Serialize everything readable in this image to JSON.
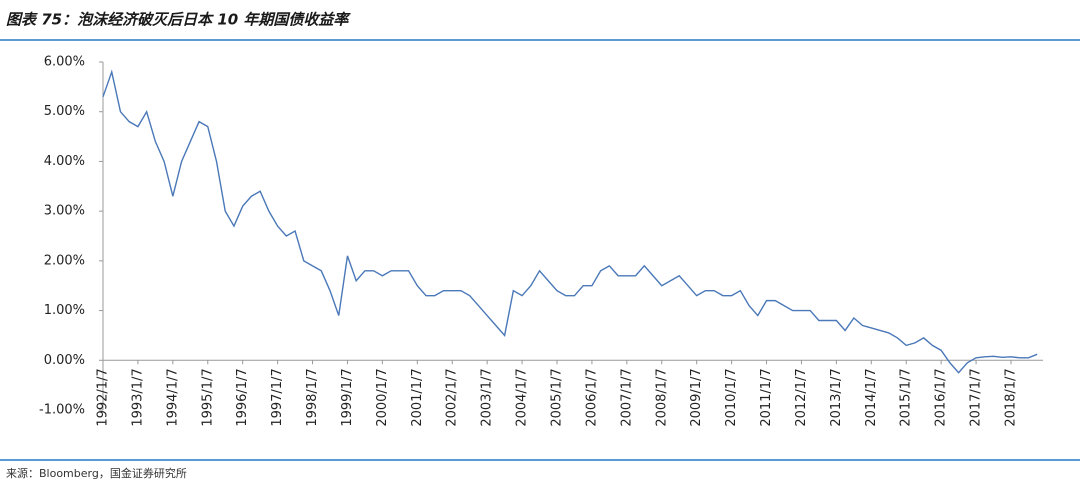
{
  "chart_data": {
    "type": "line",
    "title": "图表 75：泡沫经济破灭后日本 10 年期国债收益率",
    "source": "来源：Bloomberg，国金证券研究所",
    "x": [
      "1992/1/7",
      "1992/4/7",
      "1992/7/7",
      "1992/10/7",
      "1993/1/7",
      "1993/4/7",
      "1993/7/7",
      "1993/10/7",
      "1994/1/7",
      "1994/4/7",
      "1994/7/7",
      "1994/10/7",
      "1995/1/7",
      "1995/4/7",
      "1995/7/7",
      "1995/10/7",
      "1996/1/7",
      "1996/4/7",
      "1996/7/7",
      "1996/10/7",
      "1997/1/7",
      "1997/4/7",
      "1997/7/7",
      "1997/10/7",
      "1998/1/7",
      "1998/4/7",
      "1998/7/7",
      "1998/10/7",
      "1999/1/7",
      "1999/4/7",
      "1999/7/7",
      "1999/10/7",
      "2000/1/7",
      "2000/4/7",
      "2000/7/7",
      "2000/10/7",
      "2001/1/7",
      "2001/4/7",
      "2001/7/7",
      "2001/10/7",
      "2002/1/7",
      "2002/4/7",
      "2002/7/7",
      "2002/10/7",
      "2003/1/7",
      "2003/4/7",
      "2003/7/7",
      "2003/10/7",
      "2004/1/7",
      "2004/4/7",
      "2004/7/7",
      "2004/10/7",
      "2005/1/7",
      "2005/4/7",
      "2005/7/7",
      "2005/10/7",
      "2006/1/7",
      "2006/4/7",
      "2006/7/7",
      "2006/10/7",
      "2007/1/7",
      "2007/4/7",
      "2007/7/7",
      "2007/10/7",
      "2008/1/7",
      "2008/4/7",
      "2008/7/7",
      "2008/10/7",
      "2009/1/7",
      "2009/4/7",
      "2009/7/7",
      "2009/10/7",
      "2010/1/7",
      "2010/4/7",
      "2010/7/7",
      "2010/10/7",
      "2011/1/7",
      "2011/4/7",
      "2011/7/7",
      "2011/10/7",
      "2012/1/7",
      "2012/4/7",
      "2012/7/7",
      "2012/10/7",
      "2013/1/7",
      "2013/4/7",
      "2013/7/7",
      "2013/10/7",
      "2014/1/7",
      "2014/4/7",
      "2014/7/7",
      "2014/10/7",
      "2015/1/7",
      "2015/4/7",
      "2015/7/7",
      "2015/10/7",
      "2016/1/7",
      "2016/4/7",
      "2016/7/7",
      "2016/10/7",
      "2017/1/7",
      "2017/4/7",
      "2017/7/7",
      "2017/10/7",
      "2018/1/7",
      "2018/4/7",
      "2018/7/7",
      "2018/10/7"
    ],
    "series": [
      {
        "color": "#4a78b8",
        "values": [
          5.3,
          5.8,
          5.0,
          4.8,
          4.7,
          5.0,
          4.4,
          4.0,
          3.3,
          4.0,
          4.4,
          4.8,
          4.7,
          4.0,
          3.0,
          2.7,
          3.1,
          3.3,
          3.4,
          3.0,
          2.7,
          2.5,
          2.6,
          2.0,
          1.9,
          1.8,
          1.4,
          0.9,
          2.1,
          1.6,
          1.8,
          1.8,
          1.7,
          1.8,
          1.8,
          1.8,
          1.5,
          1.3,
          1.3,
          1.4,
          1.4,
          1.4,
          1.3,
          1.1,
          0.9,
          0.7,
          0.5,
          1.4,
          1.3,
          1.5,
          1.8,
          1.6,
          1.4,
          1.3,
          1.3,
          1.5,
          1.5,
          1.8,
          1.9,
          1.7,
          1.7,
          1.7,
          1.9,
          1.7,
          1.5,
          1.6,
          1.7,
          1.5,
          1.3,
          1.4,
          1.4,
          1.3,
          1.3,
          1.4,
          1.1,
          0.9,
          1.2,
          1.2,
          1.1,
          1.0,
          1.0,
          1.0,
          0.8,
          0.8,
          0.8,
          0.6,
          0.85,
          0.7,
          0.65,
          0.6,
          0.55,
          0.45,
          0.3,
          0.35,
          0.45,
          0.3,
          0.2,
          -0.05,
          -0.25,
          -0.05,
          0.05,
          0.07,
          0.08,
          0.06,
          0.07,
          0.05,
          0.05,
          0.12
        ]
      }
    ],
    "xlim": [
      "1992/1/7",
      "2018/12/7"
    ],
    "xticks": [
      "1992/1/7",
      "1993/1/7",
      "1994/1/7",
      "1995/1/7",
      "1996/1/7",
      "1997/1/7",
      "1998/1/7",
      "1999/1/7",
      "2000/1/7",
      "2001/1/7",
      "2002/1/7",
      "2003/1/7",
      "2004/1/7",
      "2005/1/7",
      "2006/1/7",
      "2007/1/7",
      "2008/1/7",
      "2009/1/7",
      "2010/1/7",
      "2011/1/7",
      "2012/1/7",
      "2013/1/7",
      "2014/1/7",
      "2015/1/7",
      "2016/1/7",
      "2017/1/7",
      "2018/1/7"
    ],
    "ylim": [
      -1,
      6
    ],
    "yticks": [
      {
        "value": -1,
        "label": "-1.00%"
      },
      {
        "value": 0,
        "label": "0.00%"
      },
      {
        "value": 1,
        "label": "1.00%"
      },
      {
        "value": 2,
        "label": "2.00%"
      },
      {
        "value": 3,
        "label": "3.00%"
      },
      {
        "value": 4,
        "label": "4.00%"
      },
      {
        "value": 5,
        "label": "5.00%"
      },
      {
        "value": 6,
        "label": "6.00%"
      }
    ],
    "grid": false
  }
}
